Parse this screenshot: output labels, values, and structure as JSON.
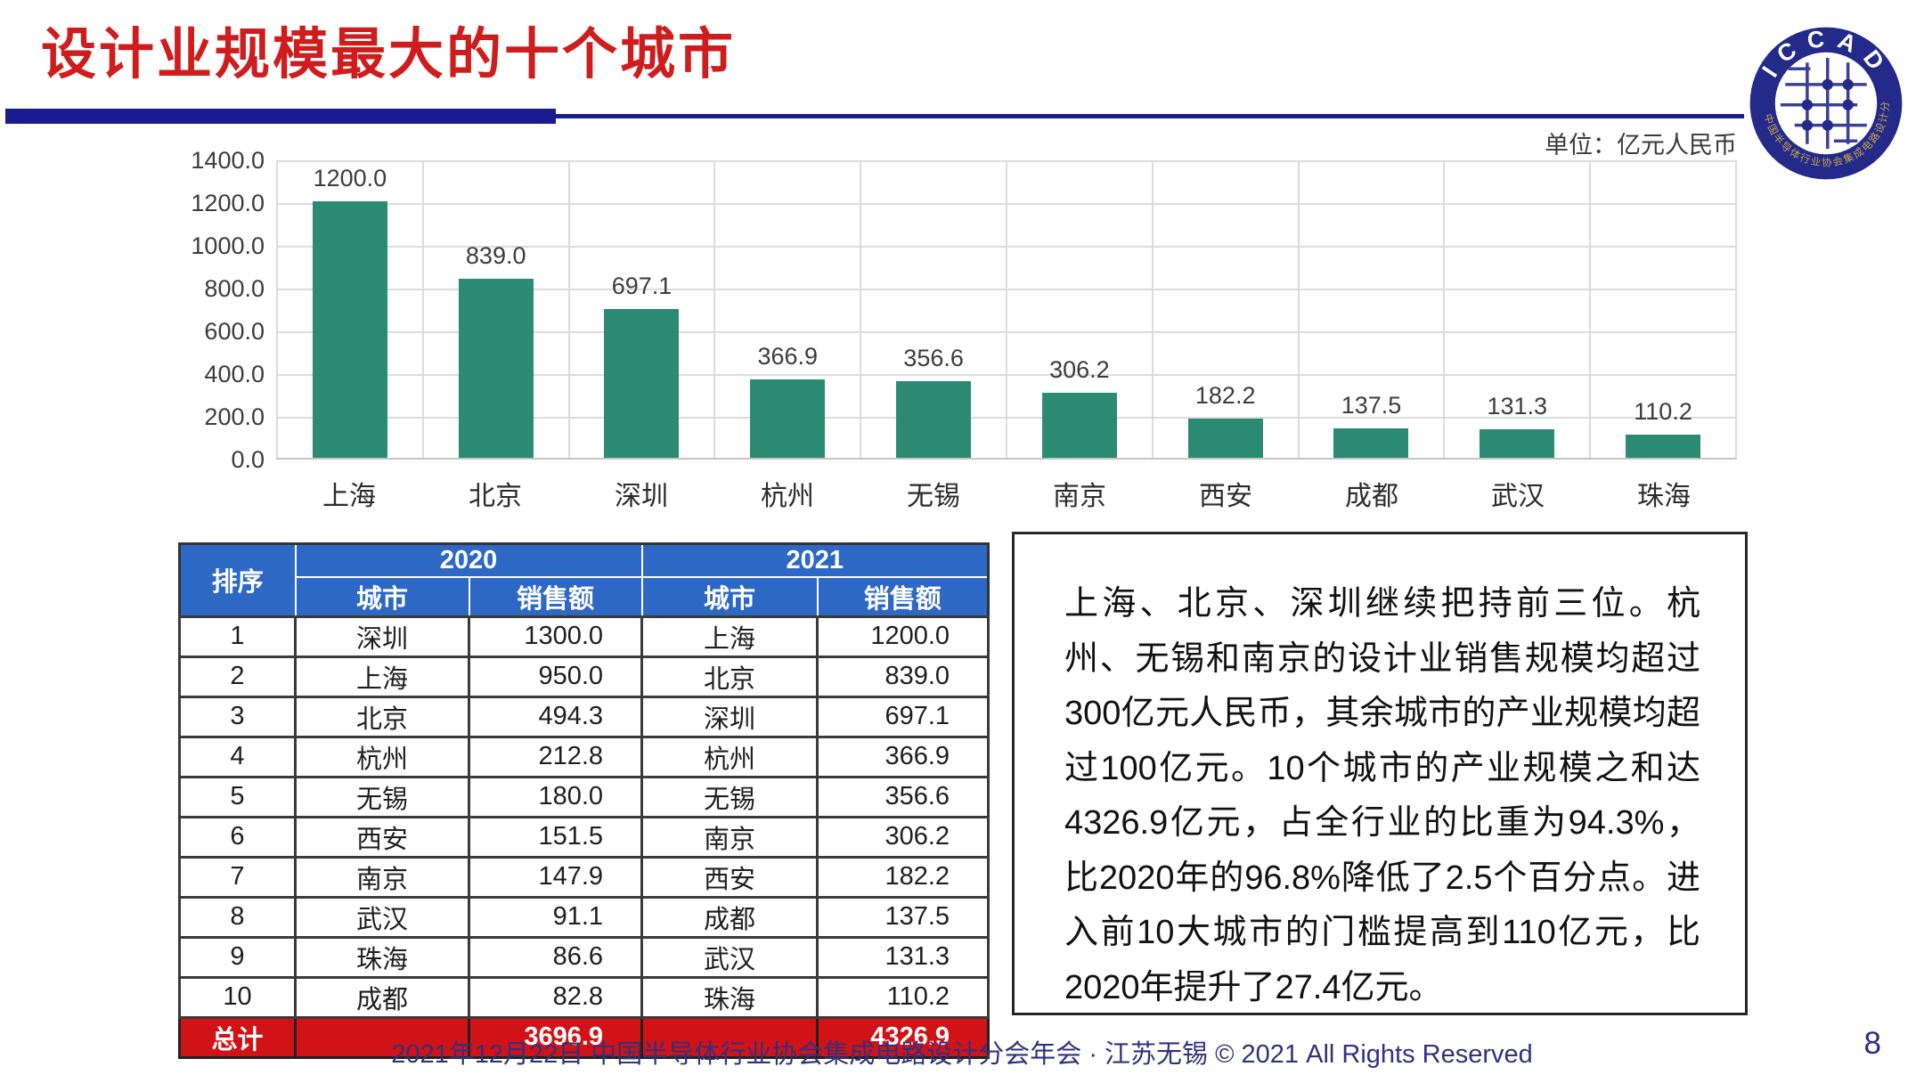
{
  "title": "设计业规模最大的十个城市",
  "unit_label": "单位：亿元人民币",
  "logo": {
    "name": "ICCAD",
    "ring_text": "中国半导体行业协会集成电路设计分会",
    "ring_color": "#232A8A",
    "ring_text_color": "#C8A34A"
  },
  "chart_data": {
    "type": "bar",
    "title": "设计业规模最大的十个城市",
    "unit": "亿元人民币",
    "categories": [
      "上海",
      "北京",
      "深圳",
      "杭州",
      "无锡",
      "南京",
      "西安",
      "成都",
      "武汉",
      "珠海"
    ],
    "values": [
      1200.0,
      839.0,
      697.1,
      366.9,
      356.6,
      306.2,
      182.2,
      137.5,
      131.3,
      110.2
    ],
    "value_labels": [
      "1200.0",
      "839.0",
      "697.1",
      "366.9",
      "356.6",
      "306.2",
      "182.2",
      "137.5",
      "131.3",
      "110.2"
    ],
    "y_ticks": [
      "1400.0",
      "1200.0",
      "1000.0",
      "800.0",
      "600.0",
      "400.0",
      "200.0",
      "0.0"
    ],
    "ylim": [
      0,
      1400
    ],
    "grid": true,
    "legend": "none",
    "bar_color": "#2B8B72"
  },
  "table": {
    "rank_header": "排序",
    "years": [
      "2020",
      "2021"
    ],
    "city_header": "城市",
    "sales_header": "销售额",
    "rows": [
      [
        "1",
        "深圳",
        "1300.0",
        "上海",
        "1200.0"
      ],
      [
        "2",
        "上海",
        "950.0",
        "北京",
        "839.0"
      ],
      [
        "3",
        "北京",
        "494.3",
        "深圳",
        "697.1"
      ],
      [
        "4",
        "杭州",
        "212.8",
        "杭州",
        "366.9"
      ],
      [
        "5",
        "无锡",
        "180.0",
        "无锡",
        "356.6"
      ],
      [
        "6",
        "西安",
        "151.5",
        "南京",
        "306.2"
      ],
      [
        "7",
        "南京",
        "147.9",
        "西安",
        "182.2"
      ],
      [
        "8",
        "武汉",
        "91.1",
        "成都",
        "137.5"
      ],
      [
        "9",
        "珠海",
        "86.6",
        "武汉",
        "131.3"
      ],
      [
        "10",
        "成都",
        "82.8",
        "珠海",
        "110.2"
      ]
    ],
    "total_label": "总计",
    "total_2020": "3696.9",
    "total_2021": "4326.9"
  },
  "commentary": "上海、北京、深圳继续把持前三位。杭州、无锡和南京的设计业销售规模均超过300亿元人民币，其余城市的产业规模均超过100亿元。10个城市的产业规模之和达4326.9亿元，占全行业的比重为94.3%，比2020年的96.8%降低了2.5个百分点。进入前10大城市的门槛提高到110亿元，比2020年提升了27.4亿元。",
  "footer": {
    "text": "2021年12月22日 中国半导体行业协会集成电路设计分会年会 · 江苏无锡 © 2021 All Rights Reserved",
    "page_number": "8"
  },
  "colors": {
    "title_red": "#CF1D1D",
    "rule_navy": "#1A1B8E",
    "bar_teal": "#2B8B72",
    "header_blue": "#2E68C5",
    "total_red": "#D11216",
    "footer_navy": "#31317E"
  }
}
